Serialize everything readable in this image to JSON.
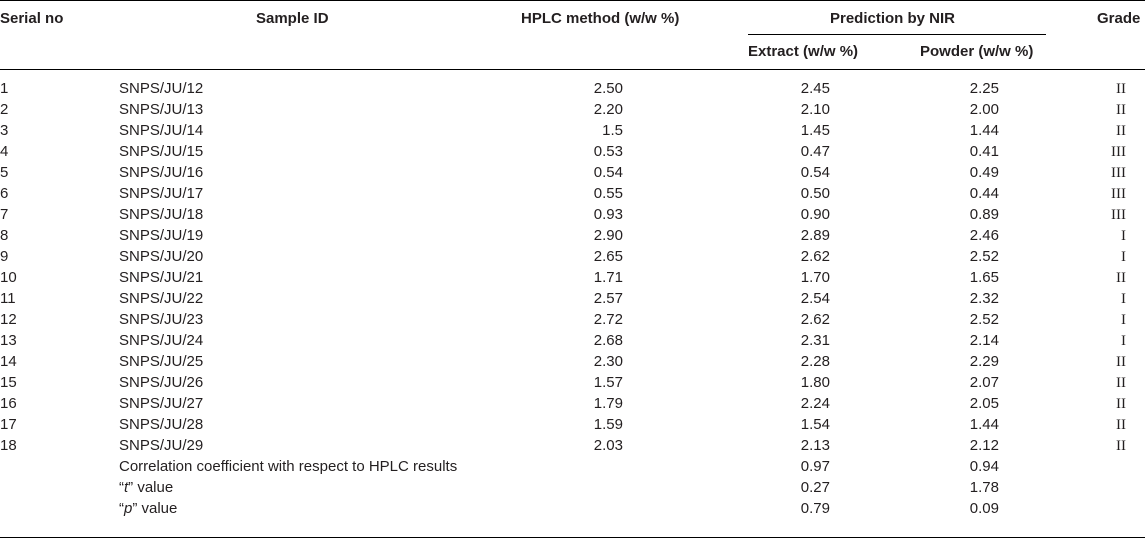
{
  "table": {
    "headers": {
      "serial": "Serial no",
      "sample": "Sample ID",
      "hplc": "HPLC method (w/w %)",
      "prediction": "Prediction by NIR",
      "extract": "Extract (w/w %)",
      "powder": "Powder (w/w %)",
      "grade": "Grade"
    },
    "rows": [
      {
        "serial": "1",
        "sample": "SNPS/JU/12",
        "hplc": "2.50",
        "extract": "2.45",
        "powder": "2.25",
        "grade": "II"
      },
      {
        "serial": "2",
        "sample": "SNPS/JU/13",
        "hplc": "2.20",
        "extract": "2.10",
        "powder": "2.00",
        "grade": "II"
      },
      {
        "serial": "3",
        "sample": "SNPS/JU/14",
        "hplc": "1.5",
        "extract": "1.45",
        "powder": "1.44",
        "grade": "II"
      },
      {
        "serial": "4",
        "sample": "SNPS/JU/15",
        "hplc": "0.53",
        "extract": "0.47",
        "powder": "0.41",
        "grade": "III"
      },
      {
        "serial": "5",
        "sample": "SNPS/JU/16",
        "hplc": "0.54",
        "extract": "0.54",
        "powder": "0.49",
        "grade": "III"
      },
      {
        "serial": "6",
        "sample": "SNPS/JU/17",
        "hplc": "0.55",
        "extract": "0.50",
        "powder": "0.44",
        "grade": "III"
      },
      {
        "serial": "7",
        "sample": "SNPS/JU/18",
        "hplc": "0.93",
        "extract": "0.90",
        "powder": "0.89",
        "grade": "III"
      },
      {
        "serial": "8",
        "sample": "SNPS/JU/19",
        "hplc": "2.90",
        "extract": "2.89",
        "powder": "2.46",
        "grade": "I"
      },
      {
        "serial": "9",
        "sample": "SNPS/JU/20",
        "hplc": "2.65",
        "extract": "2.62",
        "powder": "2.52",
        "grade": "I"
      },
      {
        "serial": "10",
        "sample": "SNPS/JU/21",
        "hplc": "1.71",
        "extract": "1.70",
        "powder": "1.65",
        "grade": "II"
      },
      {
        "serial": "11",
        "sample": "SNPS/JU/22",
        "hplc": "2.57",
        "extract": "2.54",
        "powder": "2.32",
        "grade": "I"
      },
      {
        "serial": "12",
        "sample": "SNPS/JU/23",
        "hplc": "2.72",
        "extract": "2.62",
        "powder": "2.52",
        "grade": "I"
      },
      {
        "serial": "13",
        "sample": "SNPS/JU/24",
        "hplc": "2.68",
        "extract": "2.31",
        "powder": "2.14",
        "grade": "I"
      },
      {
        "serial": "14",
        "sample": "SNPS/JU/25",
        "hplc": "2.30",
        "extract": "2.28",
        "powder": "2.29",
        "grade": "II"
      },
      {
        "serial": "15",
        "sample": "SNPS/JU/26",
        "hplc": "1.57",
        "extract": "1.80",
        "powder": "2.07",
        "grade": "II"
      },
      {
        "serial": "16",
        "sample": "SNPS/JU/27",
        "hplc": "1.79",
        "extract": "2.24",
        "powder": "2.05",
        "grade": "II"
      },
      {
        "serial": "17",
        "sample": "SNPS/JU/28",
        "hplc": "1.59",
        "extract": "1.54",
        "powder": "1.44",
        "grade": "II"
      },
      {
        "serial": "18",
        "sample": "SNPS/JU/29",
        "hplc": "2.03",
        "extract": "2.13",
        "powder": "2.12",
        "grade": "II"
      }
    ],
    "stats": [
      {
        "pre": "Correlation coefficient with respect to HPLC results",
        "ital": "",
        "post": "",
        "extract": "0.97",
        "powder": "0.94"
      },
      {
        "pre": "“",
        "ital": "t",
        "post": "” value",
        "extract": "0.27",
        "powder": "1.78"
      },
      {
        "pre": "“",
        "ital": "p",
        "post": "” value",
        "extract": "0.79",
        "powder": "0.09"
      }
    ]
  }
}
